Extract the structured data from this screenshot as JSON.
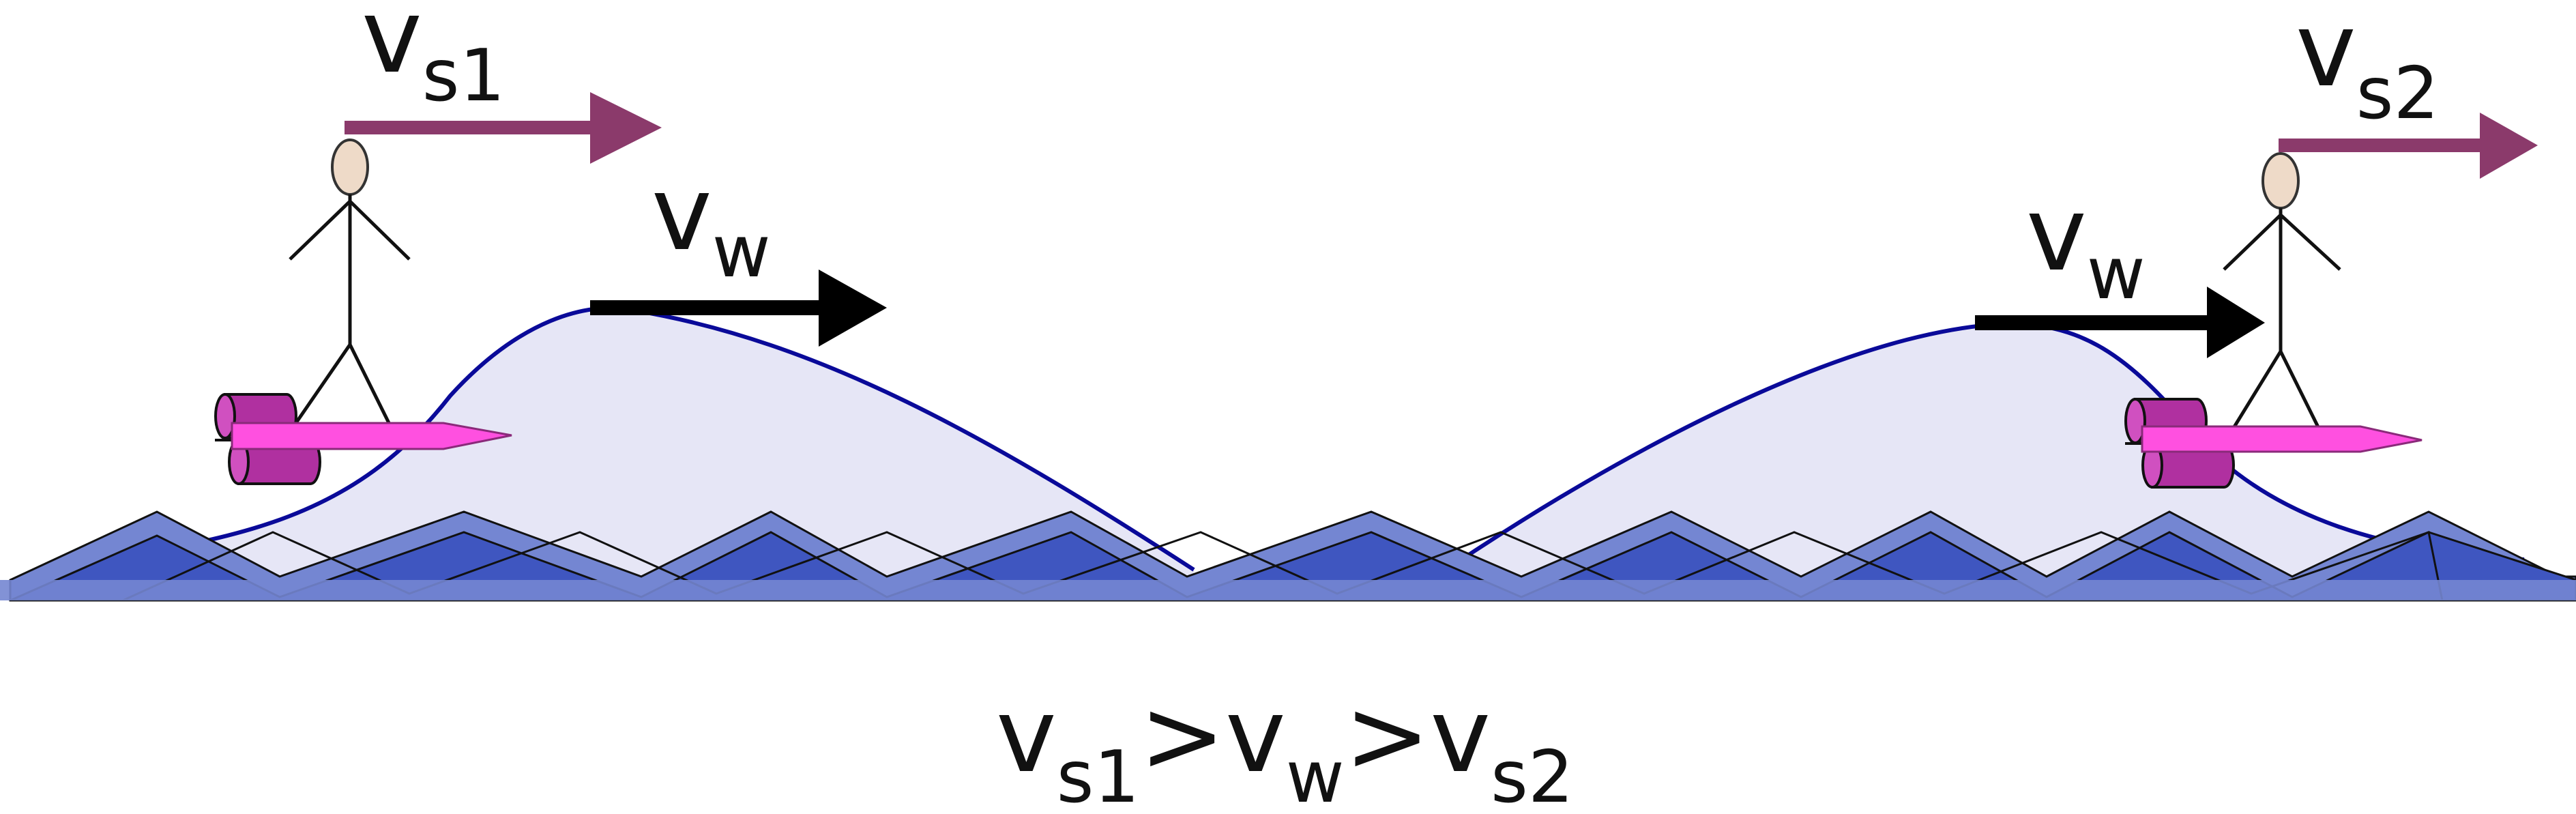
{
  "labels": {
    "v_s1": {
      "main": "v",
      "sub": "s1"
    },
    "v_w_left": {
      "main": "v",
      "sub": "w"
    },
    "v_s2": {
      "main": "v",
      "sub": "s2"
    },
    "v_w_right": {
      "main": "v",
      "sub": "w"
    }
  },
  "relation": {
    "a_main": "v",
    "a_sub": "s1",
    "gt1": ">",
    "b_main": "v",
    "b_sub": "w",
    "gt2": ">",
    "c_main": "v",
    "c_sub": "s2"
  },
  "colors": {
    "surfer_velocity_arrow": "#8b3a6b",
    "wave_velocity_arrow": "#000000",
    "wave_outline": "#0a0a99",
    "wave_fill": "#e6e6f6",
    "water_dark": "#3f56c0",
    "water_light": "#7486d2",
    "surfboard": "#ff50e0",
    "motor": "#b030a0",
    "head": "#eedac8"
  },
  "icons": [
    "stick-figure-surfer-icon",
    "surfboard-icon",
    "motor-pontoon-icon",
    "water-waves-icon"
  ]
}
